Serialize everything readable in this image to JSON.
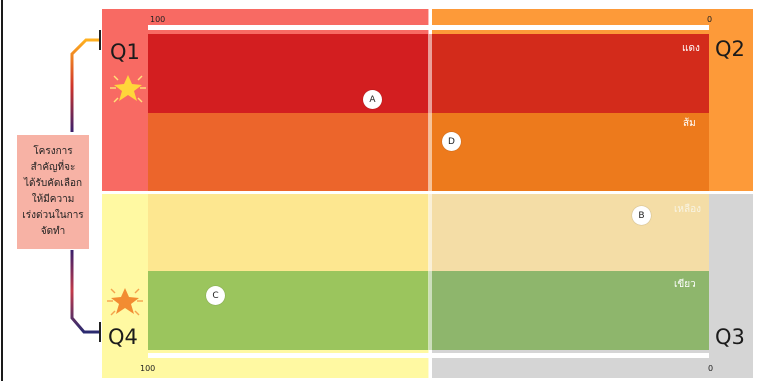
{
  "quadrants": {
    "q1": "Q1",
    "q2": "Q2",
    "q3": "Q3",
    "q4": "Q4"
  },
  "scale": {
    "top_left": "100",
    "top_right": "0",
    "bottom_left": "100",
    "bottom_right": "0"
  },
  "bands": {
    "red": "แดง",
    "orange": "ส้ม",
    "yellow": "เหลือง",
    "green": "เขียว"
  },
  "markers": {
    "a": "A",
    "b": "B",
    "c": "C",
    "d": "D"
  },
  "side_note": {
    "lines": [
      "โครงการ",
      "สำคัญที่จะ",
      "ได้รับคัดเลือก",
      "ให้มีความ",
      "เร่งด่วนในการ",
      "จัดทำ"
    ]
  },
  "colors": {
    "q1": "#f86a63",
    "q2": "#fd9a39",
    "q3": "#d5d5d5",
    "q4": "#fff9a2",
    "red_band": "#d31e20",
    "orange_band": "#ec652b",
    "yellow_band": "#fde790",
    "green_band": "#9bc55d"
  },
  "icons": [
    "star-icon-q1",
    "star-icon-q4"
  ]
}
